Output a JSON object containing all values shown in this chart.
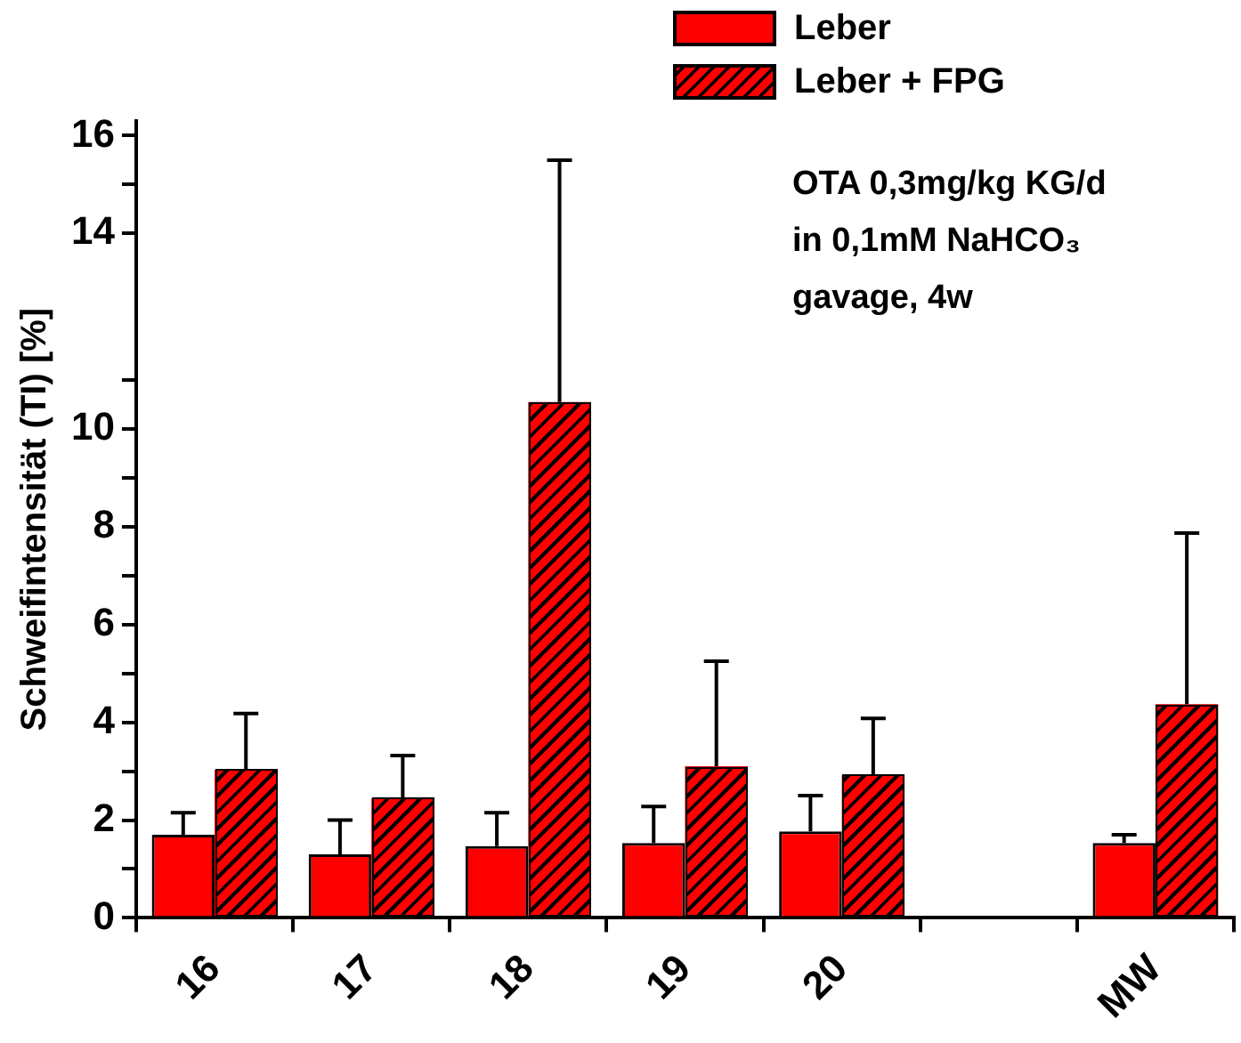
{
  "chart_data": {
    "type": "bar",
    "ylabel": "Schweifintensität (TI) [%]",
    "categories": [
      "16",
      "17",
      "18",
      "19",
      "20",
      null,
      "MW"
    ],
    "series": [
      {
        "name": "Leber",
        "color": "#ff0000",
        "values": [
          1.7,
          1.3,
          1.47,
          1.53,
          1.77,
          null,
          1.53
        ],
        "errors": [
          0.45,
          0.7,
          0.68,
          0.75,
          0.73,
          null,
          0.17
        ]
      },
      {
        "name": "Leber + FPG",
        "color": "#ff0000",
        "values": [
          3.03,
          2.45,
          10.55,
          3.1,
          2.92,
          null,
          4.37
        ],
        "errors": [
          1.15,
          0.87,
          4.95,
          2.15,
          1.16,
          null,
          3.5
        ]
      }
    ],
    "ylim": [
      0,
      16.3
    ],
    "yticks": [
      0,
      {
        "value": 1,
        "label": null
      },
      2,
      {
        "value": 3,
        "label": null
      },
      4,
      {
        "value": 5,
        "label": null
      },
      6,
      {
        "value": 7,
        "label": null
      },
      8,
      {
        "value": 9,
        "label": null
      },
      10,
      {
        "value": 11,
        "label": null
      },
      14,
      {
        "value": 15,
        "label": null
      },
      16
    ],
    "annotations": [
      "OTA 0,3mg/kg KG/d",
      "in 0,1mM NaHCO₃",
      "gavage, 4w"
    ],
    "legend": "top right",
    "grid": false
  }
}
